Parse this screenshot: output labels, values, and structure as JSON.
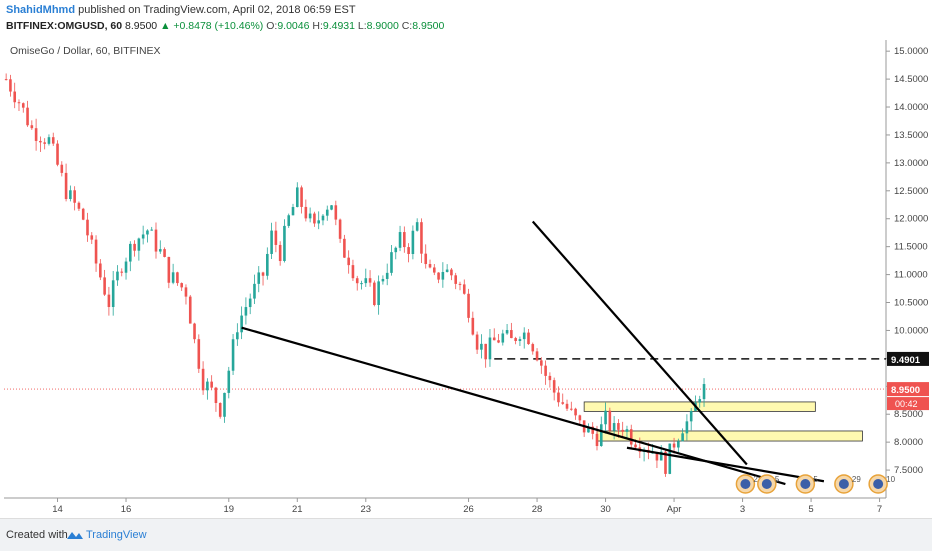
{
  "header": {
    "author": "ShahidMhmd",
    "published": " published on TradingView.com, April 02, 2018 06:59 EST",
    "symbol": "BITFINEX:OMGUSD, 60",
    "last": "8.9500",
    "change": "▲ +0.8478 (+10.46%)",
    "o_label": "O:",
    "o": "9.0046",
    "h_label": "H:",
    "h": "9.4931",
    "l_label": "L:",
    "l": "8.9000",
    "c_label": "C:",
    "c": "8.9500"
  },
  "footer": {
    "created_with": "Created with",
    "brand": "TradingView"
  },
  "colors": {
    "up": "#26a69a",
    "down": "#ef5350",
    "zone": "#fff9b0",
    "zone_border": "#333333",
    "price_tag": "#ef5350"
  },
  "chart_data": {
    "type": "candlestick",
    "title": "OmiseGo / Dollar, 60, BITFINEX",
    "ylim": [
      7.0,
      15.2
    ],
    "y_ticks": [
      "15.0000",
      "14.5000",
      "14.0000",
      "13.5000",
      "13.0000",
      "12.5000",
      "12.0000",
      "11.5000",
      "11.0000",
      "10.5000",
      "10.0000",
      "9.5000",
      "9.0000",
      "8.5000",
      "8.0000",
      "7.5000"
    ],
    "y_tick_values": [
      15.0,
      14.5,
      14.0,
      13.5,
      13.0,
      12.5,
      12.0,
      11.5,
      11.0,
      10.5,
      10.0,
      9.5,
      9.0,
      8.5,
      8.0,
      7.5
    ],
    "x_ticks": [
      {
        "label": "14",
        "bar": 12
      },
      {
        "label": "16",
        "bar": 28
      },
      {
        "label": "19",
        "bar": 52
      },
      {
        "label": "21",
        "bar": 68
      },
      {
        "label": "23",
        "bar": 84
      },
      {
        "label": "26",
        "bar": 108
      },
      {
        "label": "28",
        "bar": 124
      },
      {
        "label": "30",
        "bar": 140
      },
      {
        "label": "Apr",
        "bar": 156
      },
      {
        "label": "3",
        "bar": 172
      },
      {
        "label": "5",
        "bar": 188
      },
      {
        "label": "7",
        "bar": 204
      }
    ],
    "bar_count": 206,
    "price_path": [
      [
        0,
        14.5
      ],
      [
        3,
        14.1
      ],
      [
        6,
        13.6
      ],
      [
        10,
        13.4
      ],
      [
        14,
        12.5
      ],
      [
        18,
        12.0
      ],
      [
        21,
        11.2
      ],
      [
        24,
        10.5
      ],
      [
        27,
        11.2
      ],
      [
        30,
        11.6
      ],
      [
        33,
        11.8
      ],
      [
        36,
        11.4
      ],
      [
        38,
        11.0
      ],
      [
        42,
        10.7
      ],
      [
        44,
        9.8
      ],
      [
        46,
        9.1
      ],
      [
        48,
        8.9
      ],
      [
        50,
        8.6
      ],
      [
        52,
        9.3
      ],
      [
        54,
        10.1
      ],
      [
        57,
        10.6
      ],
      [
        60,
        11.0
      ],
      [
        62,
        11.7
      ],
      [
        64,
        11.4
      ],
      [
        66,
        12.0
      ],
      [
        68,
        12.4
      ],
      [
        70,
        12.1
      ],
      [
        72,
        11.8
      ],
      [
        74,
        12.2
      ],
      [
        76,
        12.3
      ],
      [
        78,
        11.5
      ],
      [
        80,
        11.3
      ],
      [
        82,
        10.9
      ],
      [
        84,
        10.8
      ],
      [
        86,
        10.6
      ],
      [
        88,
        11.0
      ],
      [
        90,
        11.3
      ],
      [
        92,
        11.6
      ],
      [
        94,
        11.5
      ],
      [
        96,
        11.9
      ],
      [
        98,
        11.1
      ],
      [
        100,
        10.9
      ],
      [
        102,
        11.1
      ],
      [
        104,
        11.0
      ],
      [
        106,
        10.8
      ],
      [
        108,
        10.4
      ],
      [
        110,
        9.8
      ],
      [
        112,
        9.6
      ],
      [
        114,
        9.8
      ],
      [
        116,
        9.9
      ],
      [
        118,
        9.8
      ],
      [
        120,
        10.0
      ],
      [
        122,
        9.9
      ],
      [
        124,
        9.6
      ],
      [
        126,
        9.2
      ],
      [
        128,
        8.9
      ],
      [
        130,
        8.7
      ],
      [
        132,
        8.5
      ],
      [
        134,
        8.3
      ],
      [
        136,
        8.2
      ],
      [
        138,
        8.1
      ],
      [
        140,
        8.4
      ],
      [
        142,
        8.2
      ],
      [
        144,
        8.3
      ],
      [
        146,
        8.1
      ],
      [
        148,
        8.0
      ],
      [
        150,
        7.9
      ],
      [
        152,
        7.8
      ],
      [
        154,
        7.6
      ],
      [
        156,
        8.0
      ],
      [
        158,
        8.3
      ],
      [
        160,
        8.4
      ],
      [
        162,
        8.9
      ],
      [
        163,
        8.95
      ]
    ],
    "last_price": 8.95,
    "resistance_level": 9.4901,
    "resistance_label": "9.4901",
    "price_label": "8.9500",
    "countdown_label": "00:42",
    "trendlines": [
      {
        "from": [
          123,
          11.95
        ],
        "to": [
          173,
          7.6
        ]
      },
      {
        "from": [
          55,
          10.05
        ],
        "to": [
          182,
          7.25
        ]
      },
      {
        "from": [
          145,
          7.9
        ],
        "to": [
          191,
          7.3
        ]
      }
    ],
    "zones": [
      {
        "x0": 135,
        "x1": 189,
        "y0": 8.55,
        "y1": 8.72
      },
      {
        "x0": 138,
        "x1": 200,
        "y0": 8.02,
        "y1": 8.2
      }
    ],
    "resistance_x0": 114,
    "events": [
      {
        "bar": 175,
        "label": "2"
      },
      {
        "bar": 180,
        "label": "5"
      },
      {
        "bar": 189,
        "label": "5"
      },
      {
        "bar": 198,
        "label": "29"
      },
      {
        "bar": 206,
        "label": "10"
      }
    ]
  }
}
